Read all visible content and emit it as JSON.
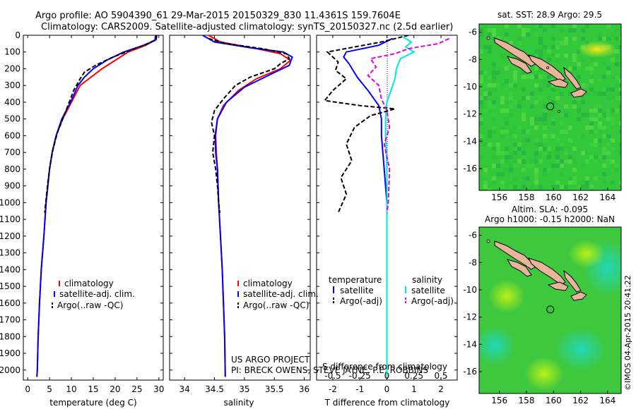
{
  "title_line1": "Argo profile: AO 5904390_61 29-Mar-2015 20150329_830 11.4361S 159.7604E",
  "title_line2": "Climatology: CARS2009. Satellite-adjusted climatology: synTS_20150327.nc (2.5d earlier)",
  "credit": "©IMOS 04-Apr-2015 20:41:22",
  "project_line1": "US ARGO PROJECT",
  "project_line2": "PI: BRECK OWENS, STEVE JAYNE, P.E. ROBBINS",
  "colors": {
    "climatology": "#ff0000",
    "satellite": "#0000ff",
    "argo": "#000000",
    "sat_salinity": "#00e5e5",
    "argo_salinity": "#e000e0"
  },
  "chart_data": [
    {
      "type": "line",
      "id": "temperature",
      "xlabel": "temperature (deg C)",
      "ylabel": "",
      "xlim": [
        -1,
        31
      ],
      "ylim": [
        2060,
        0
      ],
      "xticks": [
        0,
        5,
        10,
        15,
        20,
        25,
        30
      ],
      "yticks": [
        0,
        100,
        200,
        300,
        400,
        500,
        600,
        700,
        800,
        900,
        1000,
        1100,
        1200,
        1300,
        1400,
        1500,
        1600,
        1700,
        1800,
        1900,
        2000
      ],
      "legend": [
        "climatology",
        "satellite-adj. clim.",
        "Argo(..raw -QC)"
      ],
      "series": [
        {
          "name": "climatology",
          "color": "#ff0000",
          "dash": "",
          "points": [
            [
              29.2,
              0
            ],
            [
              29.1,
              30
            ],
            [
              27,
              60
            ],
            [
              23,
              100
            ],
            [
              20,
              150
            ],
            [
              17,
              200
            ],
            [
              14.5,
              250
            ],
            [
              12,
              300
            ],
            [
              10,
              400
            ],
            [
              8,
              500
            ],
            [
              6.5,
              600
            ],
            [
              5.6,
              700
            ],
            [
              5,
              800
            ],
            [
              4.6,
              900
            ],
            [
              4.2,
              1000
            ],
            [
              3.7,
              1200
            ],
            [
              3.1,
              1400
            ],
            [
              2.7,
              1600
            ],
            [
              2.4,
              1800
            ],
            [
              2.2,
              2000
            ],
            [
              2.1,
              2040
            ]
          ]
        },
        {
          "name": "satellite-adj. clim.",
          "color": "#0000ff",
          "dash": "",
          "points": [
            [
              29.3,
              0
            ],
            [
              29.2,
              30
            ],
            [
              26.5,
              60
            ],
            [
              22,
              100
            ],
            [
              18,
              150
            ],
            [
              15,
              200
            ],
            [
              13,
              250
            ],
            [
              11.5,
              300
            ],
            [
              9.8,
              400
            ],
            [
              7.8,
              500
            ],
            [
              6.5,
              600
            ],
            [
              5.6,
              700
            ],
            [
              5,
              800
            ],
            [
              4.6,
              900
            ],
            [
              4.2,
              1000
            ],
            [
              3.7,
              1200
            ],
            [
              3.1,
              1400
            ],
            [
              2.7,
              1600
            ],
            [
              2.4,
              1800
            ],
            [
              2.2,
              2000
            ],
            [
              2.1,
              2040
            ]
          ]
        },
        {
          "name": "Argo(..raw -QC)",
          "color": "#000000",
          "dash": "6,3",
          "points": [
            [
              29.5,
              0
            ],
            [
              29.4,
              25
            ],
            [
              27,
              55
            ],
            [
              24,
              85
            ],
            [
              19.5,
              130
            ],
            [
              15.5,
              180
            ],
            [
              13,
              220
            ],
            [
              12,
              260
            ],
            [
              10.5,
              330
            ],
            [
              9.2,
              420
            ],
            [
              8,
              500
            ],
            [
              6.8,
              580
            ],
            [
              5.8,
              680
            ],
            [
              5.1,
              780
            ],
            [
              4.6,
              880
            ],
            [
              4.2,
              980
            ],
            [
              3.9,
              1060
            ]
          ]
        }
      ]
    },
    {
      "type": "line",
      "id": "salinity",
      "xlabel": "salinity",
      "ylabel": "",
      "xlim": [
        33.75,
        36.1
      ],
      "ylim": [
        2060,
        0
      ],
      "xticks": [
        34,
        34.5,
        35,
        35.5,
        36
      ],
      "legend": [
        "climatology",
        "satellite-adj. clim.",
        "Argo(..raw -QC)"
      ],
      "series": [
        {
          "name": "climatology",
          "color": "#ff0000",
          "dash": "",
          "points": [
            [
              34.4,
              0
            ],
            [
              34.6,
              40
            ],
            [
              35.2,
              80
            ],
            [
              35.6,
              110
            ],
            [
              35.77,
              150
            ],
            [
              35.6,
              200
            ],
            [
              35.2,
              260
            ],
            [
              34.9,
              330
            ],
            [
              34.65,
              420
            ],
            [
              34.55,
              500
            ],
            [
              34.52,
              600
            ],
            [
              34.53,
              700
            ],
            [
              34.55,
              800
            ],
            [
              34.57,
              1000
            ],
            [
              34.6,
              1200
            ],
            [
              34.63,
              1400
            ],
            [
              34.65,
              1600
            ],
            [
              34.67,
              1800
            ],
            [
              34.68,
              2040
            ]
          ]
        },
        {
          "name": "satellite-adj. clim.",
          "color": "#0000ff",
          "dash": "",
          "points": [
            [
              34.3,
              0
            ],
            [
              34.5,
              40
            ],
            [
              35.1,
              75
            ],
            [
              35.65,
              100
            ],
            [
              35.8,
              130
            ],
            [
              35.75,
              180
            ],
            [
              35.4,
              240
            ],
            [
              35,
              310
            ],
            [
              34.7,
              400
            ],
            [
              34.55,
              500
            ],
            [
              34.51,
              600
            ],
            [
              34.52,
              700
            ],
            [
              34.55,
              800
            ],
            [
              34.57,
              1000
            ],
            [
              34.6,
              1200
            ],
            [
              34.63,
              1400
            ],
            [
              34.65,
              1600
            ],
            [
              34.67,
              1800
            ],
            [
              34.68,
              2040
            ]
          ]
        },
        {
          "name": "Argo(..raw -QC)",
          "color": "#000000",
          "dash": "6,3",
          "points": [
            [
              34.4,
              20
            ],
            [
              34.7,
              50
            ],
            [
              35.3,
              80
            ],
            [
              35.7,
              110
            ],
            [
              35.75,
              140
            ],
            [
              35.6,
              170
            ],
            [
              35.5,
              200
            ],
            [
              35.1,
              250
            ],
            [
              34.85,
              300
            ],
            [
              34.65,
              380
            ],
            [
              34.5,
              450
            ],
            [
              34.45,
              520
            ],
            [
              34.5,
              600
            ],
            [
              34.47,
              700
            ],
            [
              34.52,
              800
            ],
            [
              34.55,
              900
            ],
            [
              34.57,
              1000
            ],
            [
              34.59,
              1060
            ]
          ]
        }
      ]
    },
    {
      "type": "line",
      "id": "difference",
      "xlabel": "T difference from climatology",
      "xlabel_top": "S difference from climatology",
      "ylabel": "",
      "xlim": [
        -2.6,
        2.6
      ],
      "ylim": [
        2060,
        0
      ],
      "xticks": [
        -2,
        -1,
        0,
        1,
        2
      ],
      "xticks_top": [
        -0.5,
        -0.25,
        0,
        0.25,
        0.5
      ],
      "legend_titles": [
        "temperature",
        "salinity"
      ],
      "legend": [
        "satellite",
        "Argo(-adj)",
        "satellite",
        "Argo(-adj)"
      ],
      "series": [
        {
          "name": "temperature satellite",
          "color": "#0000ff",
          "dash": "",
          "points": [
            [
              0.2,
              20
            ],
            [
              -0.3,
              60
            ],
            [
              -1.5,
              100
            ],
            [
              -1.6,
              130
            ],
            [
              -1.4,
              170
            ],
            [
              -1.1,
              250
            ],
            [
              -0.7,
              330
            ],
            [
              -0.3,
              420
            ],
            [
              -0.2,
              500
            ],
            [
              -0.2,
              600
            ],
            [
              -0.1,
              800
            ],
            [
              0,
              1000
            ],
            [
              0,
              1500
            ],
            [
              0,
              2040
            ]
          ]
        },
        {
          "name": "salinity satellite",
          "color": "#00e5e5",
          "dash": "",
          "points": [
            [
              0.6,
              10
            ],
            [
              0.9,
              40
            ],
            [
              0.7,
              70
            ],
            [
              1.0,
              100
            ],
            [
              0.5,
              140
            ],
            [
              0.35,
              200
            ],
            [
              0.3,
              260
            ],
            [
              0.15,
              330
            ],
            [
              0,
              400
            ],
            [
              -0.05,
              500
            ],
            [
              -0.05,
              600
            ],
            [
              0,
              800
            ],
            [
              0,
              1000
            ],
            [
              0,
              1500
            ],
            [
              0,
              2040
            ]
          ]
        },
        {
          "name": "temperature Argo(-adj)",
          "color": "#000000",
          "dash": "6,3",
          "points": [
            [
              0.8,
              0
            ],
            [
              -0.2,
              40
            ],
            [
              -1.2,
              70
            ],
            [
              -2.2,
              100
            ],
            [
              -1.8,
              160
            ],
            [
              -1.9,
              210
            ],
            [
              -1.5,
              260
            ],
            [
              -2,
              330
            ],
            [
              -2.3,
              390
            ],
            [
              -1.0,
              420
            ],
            [
              0.3,
              440
            ],
            [
              -0.6,
              480
            ],
            [
              -1.2,
              550
            ],
            [
              -1.5,
              650
            ],
            [
              -1.3,
              750
            ],
            [
              -1.7,
              850
            ],
            [
              -1.5,
              950
            ],
            [
              -1.8,
              1060
            ]
          ]
        },
        {
          "name": "salinity Argo(-adj)",
          "color": "#e000e0",
          "dash": "6,3",
          "points": [
            [
              2.3,
              20
            ],
            [
              1.9,
              50
            ],
            [
              0.8,
              80
            ],
            [
              0.3,
              110
            ],
            [
              -0.6,
              140
            ],
            [
              -0.4,
              190
            ],
            [
              -0.7,
              240
            ],
            [
              -0.3,
              300
            ],
            [
              -0.2,
              380
            ],
            [
              0,
              450
            ],
            [
              0.1,
              550
            ],
            [
              -0.1,
              650
            ],
            [
              0.1,
              800
            ],
            [
              0.05,
              1000
            ],
            [
              0,
              1060
            ]
          ]
        }
      ]
    },
    {
      "type": "heatmap",
      "id": "sst-map",
      "title": "sat. SST: 28.9 Argo: 29.5",
      "xlim": [
        154.5,
        165
      ],
      "ylim": [
        -17.6,
        -5.4
      ],
      "xticks": [
        156,
        158,
        160,
        162,
        164
      ],
      "yticks": [
        -6,
        -8,
        -10,
        -12,
        -14,
        -16
      ],
      "argo_position": [
        159.76,
        -11.44
      ]
    },
    {
      "type": "heatmap",
      "id": "sla-map",
      "title_line1": "Altim. SLA: -0.095",
      "title_line2": "Argo h1000: -0.15 h2000: NaN",
      "xlim": [
        154.5,
        165
      ],
      "ylim": [
        -17.6,
        -5.4
      ],
      "xticks": [
        156,
        158,
        160,
        162,
        164
      ],
      "yticks": [
        -6,
        -8,
        -10,
        -12,
        -14,
        -16
      ],
      "argo_position": [
        159.76,
        -11.44
      ]
    }
  ]
}
